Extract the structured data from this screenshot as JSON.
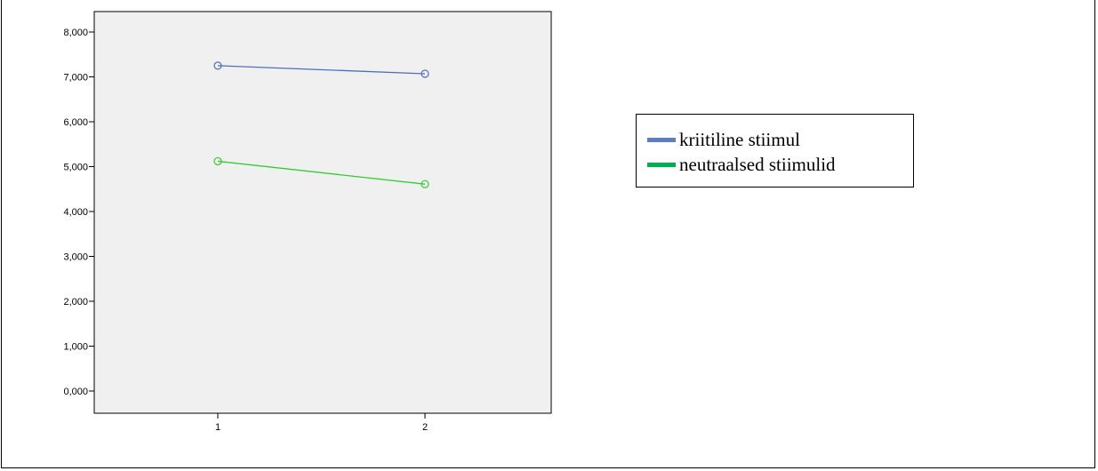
{
  "chart_data": {
    "type": "line",
    "x": [
      "1",
      "2"
    ],
    "ylim": [
      0,
      8000
    ],
    "y_ticks": [
      "0,000",
      "1,000",
      "2,000",
      "3,000",
      "4,000",
      "5,000",
      "6,000",
      "7,000",
      "8,000"
    ],
    "y_tick_values": [
      0,
      1000,
      2000,
      3000,
      4000,
      5000,
      6000,
      7000,
      8000
    ],
    "grid": false,
    "legend_position": "right",
    "plot_background": "#f0f0f0",
    "series": [
      {
        "name": "kriitiline stiimul",
        "values": [
          7250,
          7070
        ],
        "color": "#4f6fbd",
        "legend_color": "#5b7fc4"
      },
      {
        "name": "neutraalsed stiimulid",
        "values": [
          5120,
          4610
        ],
        "color": "#33cc33",
        "legend_color": "#00b050"
      }
    ],
    "marker": "open-circle",
    "title": "",
    "xlabel": "",
    "ylabel": ""
  }
}
